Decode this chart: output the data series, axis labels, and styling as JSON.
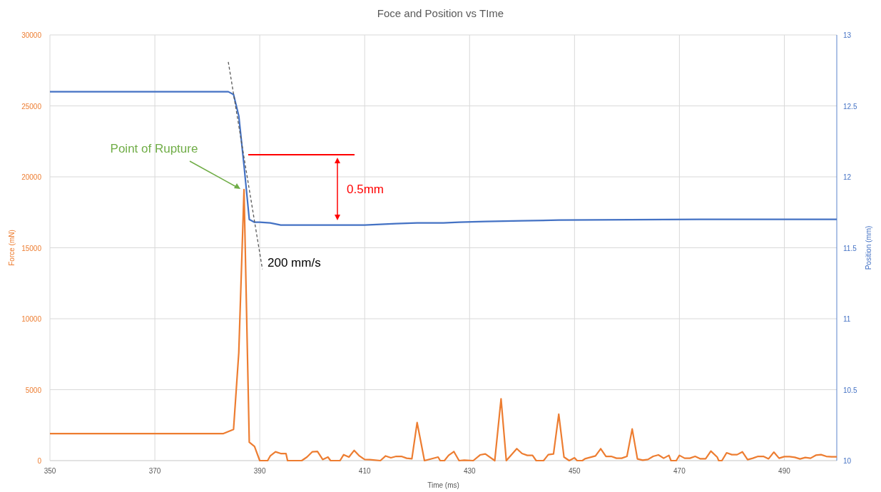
{
  "chart_data": {
    "type": "line",
    "title": "Foce and Position vs TIme",
    "xlabel": "Time (ms)",
    "ylabel": "Force (mN)",
    "y2label": "Position (mm)",
    "xlim": [
      350,
      500
    ],
    "xticks": [
      350,
      370,
      390,
      410,
      430,
      450,
      470,
      490
    ],
    "ylim": [
      0,
      30000
    ],
    "yticks": [
      0,
      5000,
      10000,
      15000,
      20000,
      25000,
      30000
    ],
    "y2lim": [
      10,
      13
    ],
    "y2ticks": [
      10,
      10.5,
      11,
      11.5,
      12,
      12.5,
      13
    ],
    "grid": true,
    "series": [
      {
        "color": "#ed7d31",
        "x": [
          350,
          383,
          385,
          386,
          387,
          388,
          389,
          390,
          391.5,
          392,
          393,
          394,
          395,
          395.3,
          398,
          399,
          400,
          401,
          402,
          403,
          403.5,
          405.3,
          406,
          407,
          408,
          409,
          410,
          411,
          413,
          414,
          415,
          416,
          417,
          418,
          419,
          420,
          421.4,
          424,
          424.4,
          425.2,
          426,
          427,
          428,
          429,
          430.7,
          432,
          433,
          434.8,
          436,
          437,
          439,
          440,
          441,
          442,
          442.7,
          444.1,
          445,
          446,
          447,
          448,
          449,
          450,
          450.5,
          451.5,
          452,
          454,
          455,
          456,
          457,
          458,
          459,
          460,
          461,
          462,
          463,
          464,
          465,
          466,
          467,
          468,
          468.4,
          469.4,
          470,
          471,
          472,
          473,
          474,
          475,
          476,
          477.2,
          477.5,
          478.1,
          479,
          480,
          481,
          482,
          483,
          484,
          485,
          486,
          487,
          488,
          489,
          490,
          491,
          492,
          493,
          494,
          495,
          496,
          497,
          498,
          499,
          500
        ],
        "values": [
          1900,
          1900,
          2200,
          7600,
          19100,
          1300,
          1000,
          0,
          0,
          330,
          620,
          500,
          500,
          0,
          0,
          250,
          620,
          650,
          80,
          250,
          0,
          0,
          420,
          250,
          720,
          330,
          80,
          70,
          0,
          330,
          200,
          300,
          300,
          170,
          130,
          2680,
          0,
          250,
          0,
          0,
          370,
          640,
          0,
          30,
          0,
          400,
          470,
          0,
          4350,
          0,
          840,
          500,
          370,
          370,
          0,
          0,
          420,
          470,
          3270,
          250,
          0,
          200,
          0,
          0,
          130,
          330,
          840,
          300,
          300,
          170,
          170,
          300,
          2230,
          120,
          30,
          80,
          300,
          400,
          170,
          370,
          0,
          0,
          370,
          170,
          170,
          300,
          130,
          130,
          670,
          250,
          0,
          0,
          550,
          420,
          420,
          620,
          70,
          170,
          300,
          300,
          130,
          600,
          170,
          280,
          280,
          230,
          120,
          220,
          170,
          380,
          420,
          300,
          270,
          270
        ]
      },
      {
        "color": "#4472c4",
        "axis": "y2",
        "x": [
          350,
          384,
          385,
          386,
          387,
          388,
          389,
          390,
          392,
          394,
          397,
          410,
          413,
          416,
          420,
          425,
          428,
          433,
          440,
          447,
          474,
          500
        ],
        "values": [
          12.6,
          12.6,
          12.58,
          12.43,
          12.08,
          11.7,
          11.68,
          11.68,
          11.675,
          11.66,
          11.66,
          11.66,
          11.665,
          11.67,
          11.675,
          11.675,
          11.68,
          11.685,
          11.69,
          11.695,
          11.7,
          11.7
        ]
      },
      {
        "type": "line",
        "color": "#595959",
        "axis": "y2",
        "line_style": "dashed",
        "x": [
          384,
          390.5
        ],
        "values": [
          12.81,
          11.35
        ]
      }
    ],
    "annotations": [
      "Point of Rupture",
      "0.5mm",
      "200 mm/s"
    ]
  }
}
